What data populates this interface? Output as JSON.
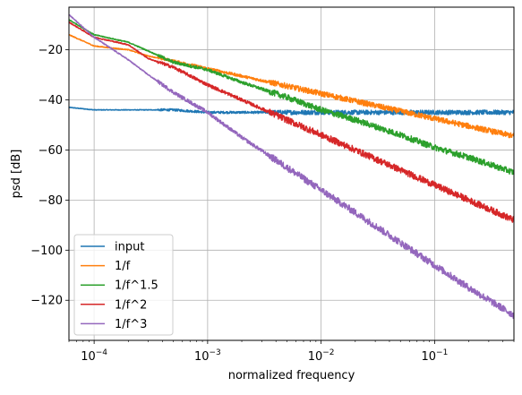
{
  "chart_data": {
    "type": "line",
    "xlabel": "normalized frequency",
    "ylabel": "psd [dB]",
    "xscale": "log",
    "xlim": [
      6e-05,
      0.5
    ],
    "ylim": [
      -136,
      -3
    ],
    "grid": true,
    "legend_position": "lower-left",
    "x_ticks": [
      {
        "value": 0.0001,
        "base": "10",
        "exp": "−4"
      },
      {
        "value": 0.001,
        "base": "10",
        "exp": "−3"
      },
      {
        "value": 0.01,
        "base": "10",
        "exp": "−2"
      },
      {
        "value": 0.1,
        "base": "10",
        "exp": "−1"
      }
    ],
    "y_ticks": [
      {
        "value": -20,
        "label": "−20"
      },
      {
        "value": -40,
        "label": "−40"
      },
      {
        "value": -60,
        "label": "−60"
      },
      {
        "value": -80,
        "label": "−80"
      },
      {
        "value": -100,
        "label": "−100"
      },
      {
        "value": -120,
        "label": "−120"
      }
    ],
    "series": [
      {
        "name": "input",
        "color": "#1f77b4",
        "x": [
          6e-05,
          0.0001,
          0.0002,
          0.0003,
          0.0005,
          0.001,
          0.002,
          0.005,
          0.01,
          0.02,
          0.05,
          0.1,
          0.2,
          0.5
        ],
        "y": [
          -43,
          -44,
          -44,
          -44,
          -44,
          -45,
          -45,
          -45,
          -45,
          -45,
          -45,
          -45,
          -45,
          -45
        ],
        "noise": 0.9
      },
      {
        "name": "1/f",
        "color": "#ff7f0e",
        "x": [
          6e-05,
          0.0001,
          0.0002,
          0.0003,
          0.0005,
          0.001,
          0.002,
          0.005,
          0.01,
          0.02,
          0.05,
          0.1,
          0.2,
          0.5
        ],
        "y": [
          -14,
          -18.5,
          -20,
          -22.5,
          -24.5,
          -27.5,
          -30.5,
          -34.5,
          -37.5,
          -40.5,
          -44.5,
          -47.5,
          -50.5,
          -54.5
        ],
        "noise": 1.1
      },
      {
        "name": "1/f^1.5",
        "color": "#2ca02c",
        "x": [
          6e-05,
          0.0001,
          0.0002,
          0.0003,
          0.0005,
          0.001,
          0.002,
          0.005,
          0.01,
          0.02,
          0.05,
          0.1,
          0.2,
          0.5
        ],
        "y": [
          -8,
          -14,
          -17,
          -20.5,
          -25,
          -28,
          -33,
          -39,
          -44,
          -48,
          -54,
          -59,
          -63,
          -69
        ],
        "noise": 1.2
      },
      {
        "name": "1/f^2",
        "color": "#d62728",
        "x": [
          6e-05,
          0.0001,
          0.0002,
          0.0003,
          0.0005,
          0.001,
          0.002,
          0.005,
          0.01,
          0.02,
          0.05,
          0.1,
          0.2,
          0.5
        ],
        "y": [
          -9,
          -15,
          -18,
          -23.5,
          -27,
          -34,
          -40,
          -48,
          -54,
          -60,
          -68,
          -74,
          -80,
          -88
        ],
        "noise": 1.3
      },
      {
        "name": "1/f^3",
        "color": "#9467bd",
        "x": [
          6e-05,
          0.0001,
          0.0002,
          0.0003,
          0.0005,
          0.001,
          0.002,
          0.005,
          0.01,
          0.02,
          0.05,
          0.1,
          0.2,
          0.5
        ],
        "y": [
          -6,
          -15,
          -24,
          -30,
          -37,
          -45,
          -55,
          -67,
          -76,
          -85,
          -97,
          -106,
          -115,
          -126
        ],
        "noise": 1.4
      }
    ]
  }
}
